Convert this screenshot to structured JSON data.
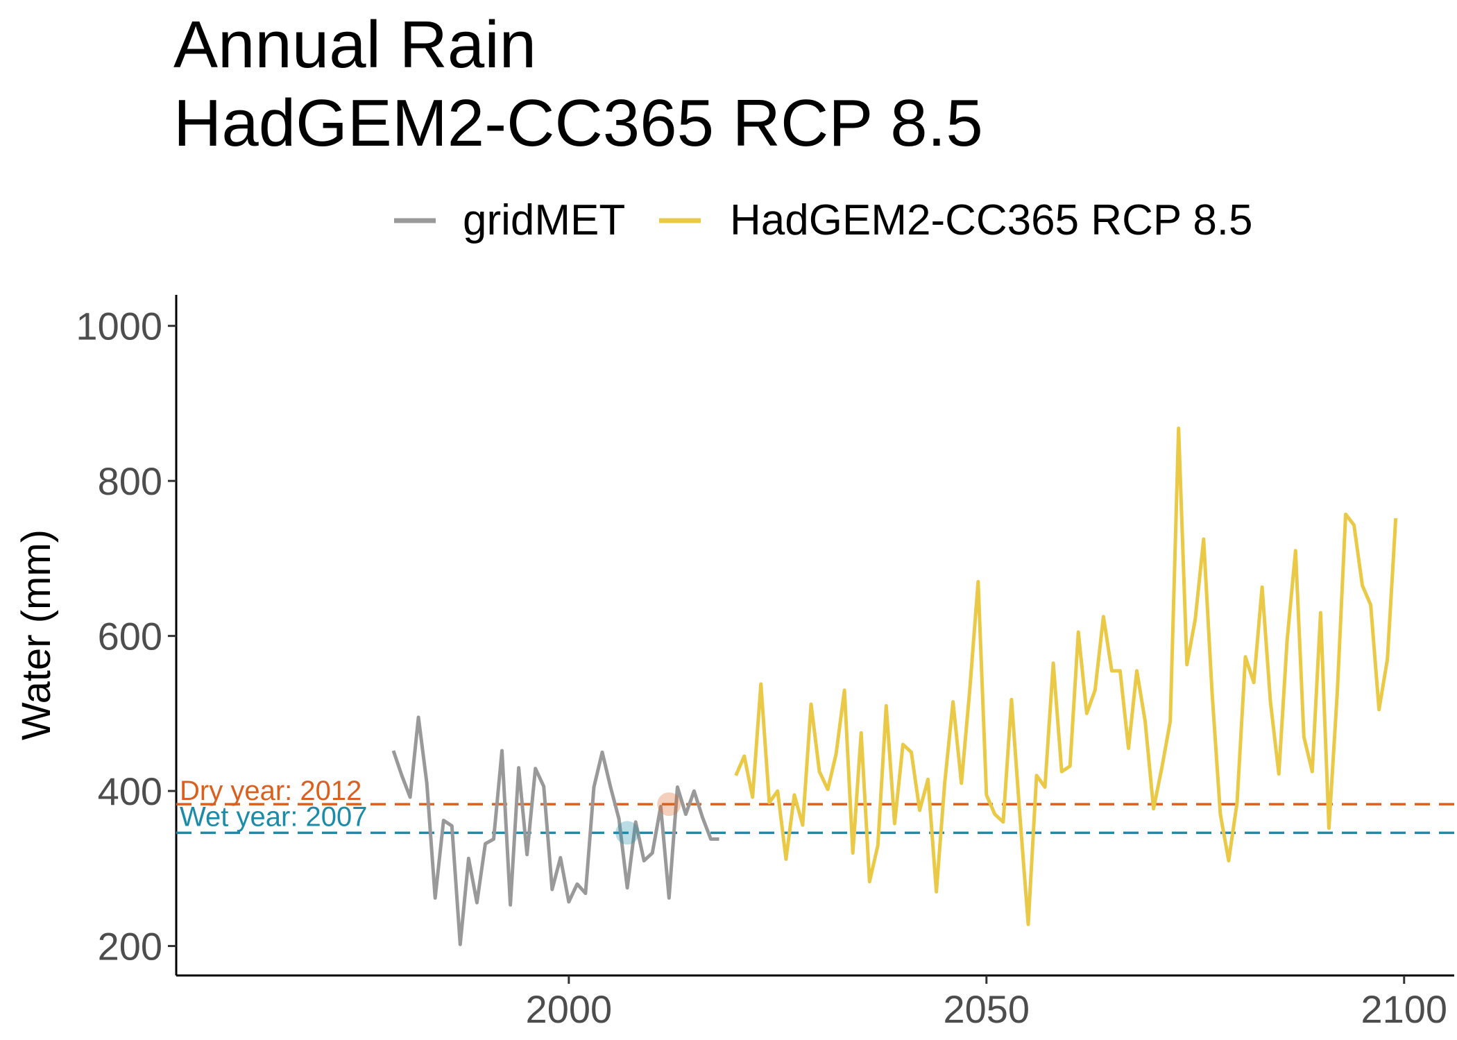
{
  "chart_data": {
    "type": "line",
    "title": [
      "Annual Rain",
      "HadGEM2-CC365 RCP 8.5"
    ],
    "xlabel": "",
    "ylabel": "Water (mm)",
    "xlim": [
      1953,
      2106
    ],
    "ylim": [
      162,
      1040
    ],
    "x_ticks": [
      2000,
      2050,
      2100
    ],
    "y_ticks": [
      200,
      400,
      600,
      800,
      1000
    ],
    "grid": false,
    "legend_position": "top",
    "series": [
      {
        "name": "gridMET",
        "color": "#999999",
        "x": [
          1979,
          1980,
          1981,
          1982,
          1983,
          1984,
          1985,
          1986,
          1987,
          1988,
          1989,
          1990,
          1991,
          1992,
          1993,
          1994,
          1995,
          1996,
          1997,
          1998,
          1999,
          2000,
          2001,
          2002,
          2003,
          2004,
          2005,
          2006,
          2007,
          2008,
          2009,
          2010,
          2011,
          2012,
          2013,
          2014,
          2015,
          2016,
          2017,
          2018
        ],
        "values": [
          452,
          420,
          392,
          495,
          410,
          262,
          362,
          355,
          202,
          313,
          256,
          332,
          338,
          452,
          253,
          430,
          318,
          429,
          406,
          273,
          314,
          257,
          280,
          268,
          405,
          450,
          405,
          364,
          275,
          360,
          310,
          320,
          380,
          262,
          405,
          370,
          400,
          366,
          338,
          338
        ]
      },
      {
        "name": "HadGEM2-CC365 RCP 8.5",
        "color": "#E9C946",
        "x": [
          2020,
          2021,
          2022,
          2023,
          2024,
          2025,
          2026,
          2027,
          2028,
          2029,
          2030,
          2031,
          2032,
          2033,
          2034,
          2035,
          2036,
          2037,
          2038,
          2039,
          2040,
          2041,
          2042,
          2043,
          2044,
          2045,
          2046,
          2047,
          2048,
          2049,
          2050,
          2051,
          2052,
          2053,
          2054,
          2055,
          2056,
          2057,
          2058,
          2059,
          2060,
          2061,
          2062,
          2063,
          2064,
          2065,
          2066,
          2067,
          2068,
          2069,
          2070,
          2071,
          2072,
          2073,
          2074,
          2075,
          2076,
          2077,
          2078,
          2079,
          2080,
          2081,
          2082,
          2083,
          2084,
          2085,
          2086,
          2087,
          2088,
          2089,
          2090,
          2091,
          2092,
          2093,
          2094,
          2095,
          2096,
          2097,
          2098,
          2099
        ],
        "values": [
          420,
          445,
          392,
          538,
          385,
          400,
          312,
          395,
          356,
          512,
          425,
          402,
          448,
          530,
          320,
          475,
          283,
          330,
          510,
          358,
          460,
          450,
          375,
          415,
          270,
          410,
          515,
          410,
          530,
          670,
          395,
          370,
          360,
          518,
          368,
          228,
          420,
          405,
          565,
          425,
          432,
          605,
          500,
          530,
          625,
          555,
          555,
          455,
          555,
          490,
          377,
          430,
          490,
          868,
          563,
          622,
          725,
          528,
          370,
          310,
          385,
          573,
          540,
          663,
          515,
          422,
          595,
          710,
          470,
          425,
          630,
          352,
          528,
          757,
          743,
          665,
          640,
          505,
          570,
          752
        ]
      }
    ],
    "reference_lines": [
      {
        "label": "Dry year: 2012",
        "y": 383,
        "color": "#D9601F",
        "year": 2012
      },
      {
        "label": "Wet year: 2007",
        "y": 346,
        "color": "#1B8BA8",
        "year": 2007
      }
    ]
  }
}
